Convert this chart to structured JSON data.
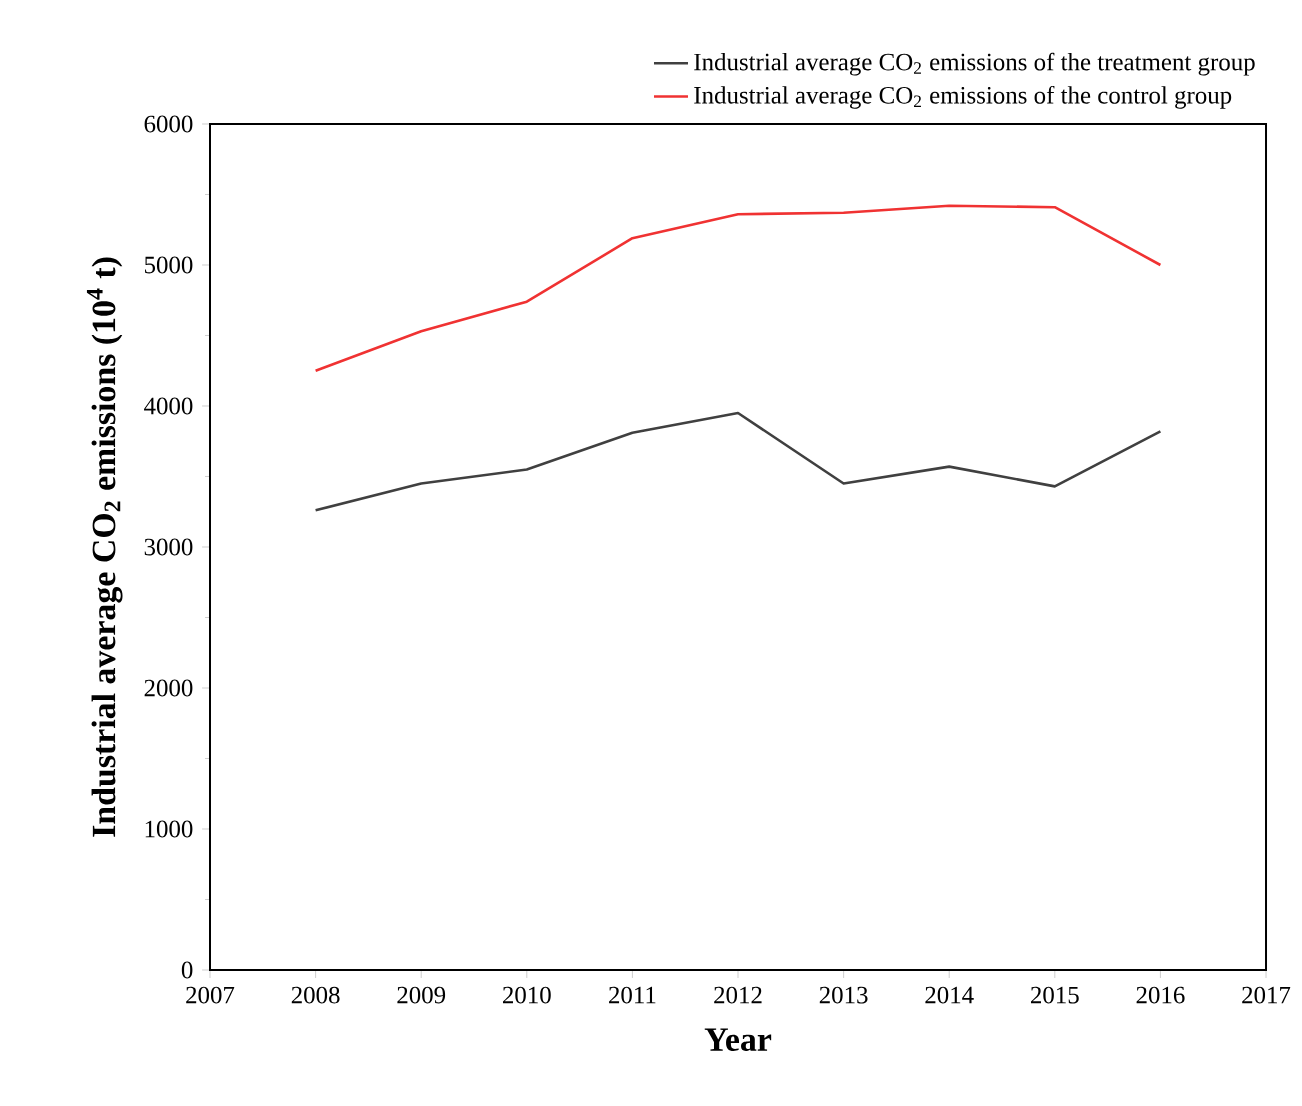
{
  "chart_data": {
    "type": "line",
    "xlabel": "Year",
    "ylabel": "Industrial average CO$_{2}$ emissions (10$^{4}$ t)",
    "x": [
      2008,
      2009,
      2010,
      2011,
      2012,
      2013,
      2014,
      2015,
      2016
    ],
    "series": [
      {
        "name": "Industrial average CO$_{2}$ emissions of the treatment group",
        "color": "#404040",
        "values": [
          3260,
          3450,
          3550,
          3810,
          3950,
          3450,
          3570,
          3430,
          3820
        ]
      },
      {
        "name": "Industrial average CO$_{2}$ emissions of the control group",
        "color": "#f03232",
        "values": [
          4250,
          4530,
          4740,
          5190,
          5360,
          5370,
          5420,
          5410,
          5000
        ]
      }
    ],
    "xlim": [
      2007,
      2017
    ],
    "xticks": [
      2007,
      2008,
      2009,
      2010,
      2011,
      2012,
      2013,
      2014,
      2015,
      2016,
      2017
    ],
    "ylim": [
      0,
      6000
    ],
    "yticks": [
      0,
      1000,
      2000,
      3000,
      4000,
      5000,
      6000
    ],
    "grid": false,
    "legend": "top right",
    "marker": "none",
    "line_style": "solid"
  }
}
